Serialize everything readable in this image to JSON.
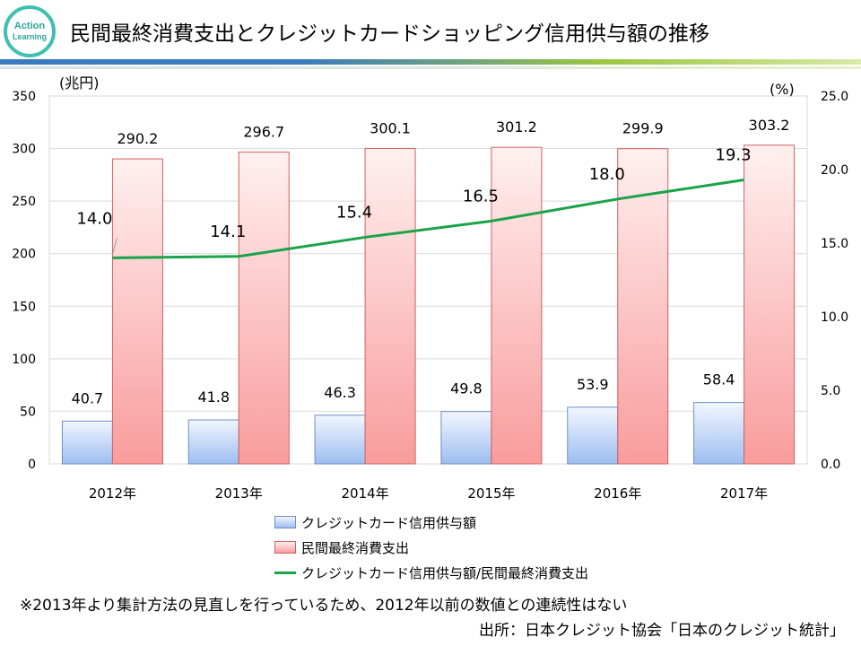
{
  "header": {
    "logo_line1": "Action",
    "logo_line2": "Learning",
    "title": "民間最終消費支出とクレジットカードショッピング信用供与額の推移"
  },
  "chart_data": {
    "type": "bar",
    "categories": [
      "2012年",
      "2013年",
      "2014年",
      "2015年",
      "2016年",
      "2017年"
    ],
    "series": [
      {
        "name": "クレジットカード信用供与額",
        "kind": "bar",
        "axis": "left",
        "color": "#9dbef0",
        "values": [
          40.7,
          41.8,
          46.3,
          49.8,
          53.9,
          58.4
        ]
      },
      {
        "name": "民間最終消費支出",
        "kind": "bar",
        "axis": "left",
        "color": "#f99c9c",
        "values": [
          290.2,
          296.7,
          300.1,
          301.2,
          299.9,
          303.2
        ]
      },
      {
        "name": "クレジットカード信用供与額/民間最終消費支出",
        "kind": "line",
        "axis": "right",
        "color": "#1aa34a",
        "values": [
          14.0,
          14.1,
          15.4,
          16.5,
          18.0,
          19.3
        ]
      }
    ],
    "left_axis": {
      "label": "(兆円)",
      "min": 0,
      "max": 350,
      "ticks": [
        0,
        50,
        100,
        150,
        200,
        250,
        300,
        350
      ],
      "tick_labels": [
        "0",
        "50",
        "100",
        "150",
        "200",
        "250",
        "300",
        "350"
      ]
    },
    "right_axis": {
      "label": "(%)",
      "min": 0,
      "max": 25,
      "ticks": [
        0,
        5,
        10,
        15,
        20,
        25
      ],
      "tick_labels": [
        "0.0",
        "5.0",
        "10.0",
        "15.0",
        "20.0",
        "25.0"
      ]
    },
    "bar_labels": {
      "blue": [
        "40.7",
        "41.8",
        "46.3",
        "49.8",
        "53.9",
        "58.4"
      ],
      "red": [
        "290.2",
        "296.7",
        "300.1",
        "301.2",
        "299.9",
        "303.2"
      ],
      "line": [
        "14.0",
        "14.1",
        "15.4",
        "16.5",
        "18.0",
        "19.3"
      ]
    },
    "legend_position": "bottom"
  },
  "footer": {
    "note": "※2013年より集計方法の見直しを行っているため、2012年以前の数値との連続性はない",
    "source": "出所：日本クレジット協会「日本のクレジット統計」"
  }
}
